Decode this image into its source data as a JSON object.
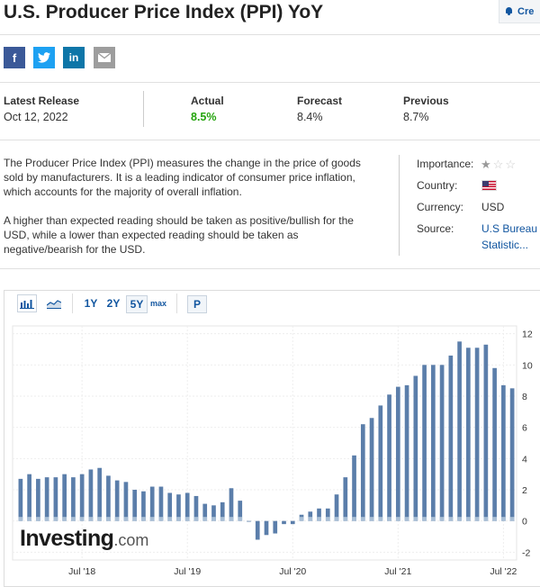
{
  "page": {
    "title": "U.S. Producer Price Index (PPI) YoY",
    "create_alert_label": "Cre"
  },
  "share": {
    "facebook": "f",
    "twitter": "twitter-icon",
    "linkedin": "in",
    "email": "email-icon"
  },
  "release": {
    "latest_label": "Latest Release",
    "latest_date": "Oct 12, 2022",
    "actual_label": "Actual",
    "actual_value": "8.5%",
    "forecast_label": "Forecast",
    "forecast_value": "8.4%",
    "previous_label": "Previous",
    "previous_value": "8.7%"
  },
  "description": {
    "paragraph1": "The Producer Price Index (PPI) measures the change in the price of goods sold by manufacturers. It is a leading indicator of consumer price inflation, which accounts for the majority of overall inflation.",
    "paragraph2": "A higher than expected reading should be taken as positive/bullish for the USD, while a lower than expected reading should be taken as negative/bearish for the USD."
  },
  "meta": {
    "importance_label": "Importance:",
    "importance_level": 1,
    "importance_max": 3,
    "country_label": "Country:",
    "country_flag": "us-flag-icon",
    "currency_label": "Currency:",
    "currency_value": "USD",
    "source_label": "Source:",
    "source_line1": "U.S Bureau",
    "source_line2": "Statistic..."
  },
  "chart_toolbar": {
    "bar_icon": "bar-chart-icon",
    "area_icon": "area-chart-icon",
    "ranges": [
      "1Y",
      "2Y",
      "5Y",
      "max"
    ],
    "selected_range": "5Y",
    "p_label": "P"
  },
  "watermark": {
    "brand": "Investing",
    "suffix": ".com"
  },
  "colors": {
    "accent": "#1256a0",
    "positive": "#25a40e",
    "bar": "#5b7eaa",
    "bar_light": "#a9bfd6"
  },
  "chart_data": {
    "type": "bar",
    "series": [
      {
        "values": [
          2.7,
          3.0,
          2.7,
          2.8,
          2.8,
          3.0,
          2.8,
          3.0,
          3.3,
          3.4,
          2.9,
          2.6,
          2.5,
          2.0,
          1.9,
          2.2,
          2.2,
          1.8,
          1.7,
          1.8,
          1.6,
          1.1,
          1.0,
          1.2,
          2.1,
          1.3,
          0.0,
          -1.2,
          -0.9,
          -0.8,
          -0.2,
          -0.2,
          0.4,
          0.6,
          0.8,
          0.8,
          1.7,
          2.8,
          4.2,
          6.2,
          6.6,
          7.4,
          8.1,
          8.6,
          8.7,
          9.3,
          10.0,
          10.0,
          10.0,
          10.6,
          11.5,
          11.1,
          11.1,
          11.3,
          9.8,
          8.7,
          8.5
        ]
      }
    ],
    "x_tick_labels": [
      "Jul '18",
      "Jul '19",
      "Jul '20",
      "Jul '21",
      "Jul '22"
    ],
    "y_tick_labels": [
      "-2",
      "0",
      "2",
      "4",
      "6",
      "8",
      "10",
      "12"
    ],
    "ylim": [
      -2.5,
      12.5
    ],
    "grid": true
  }
}
